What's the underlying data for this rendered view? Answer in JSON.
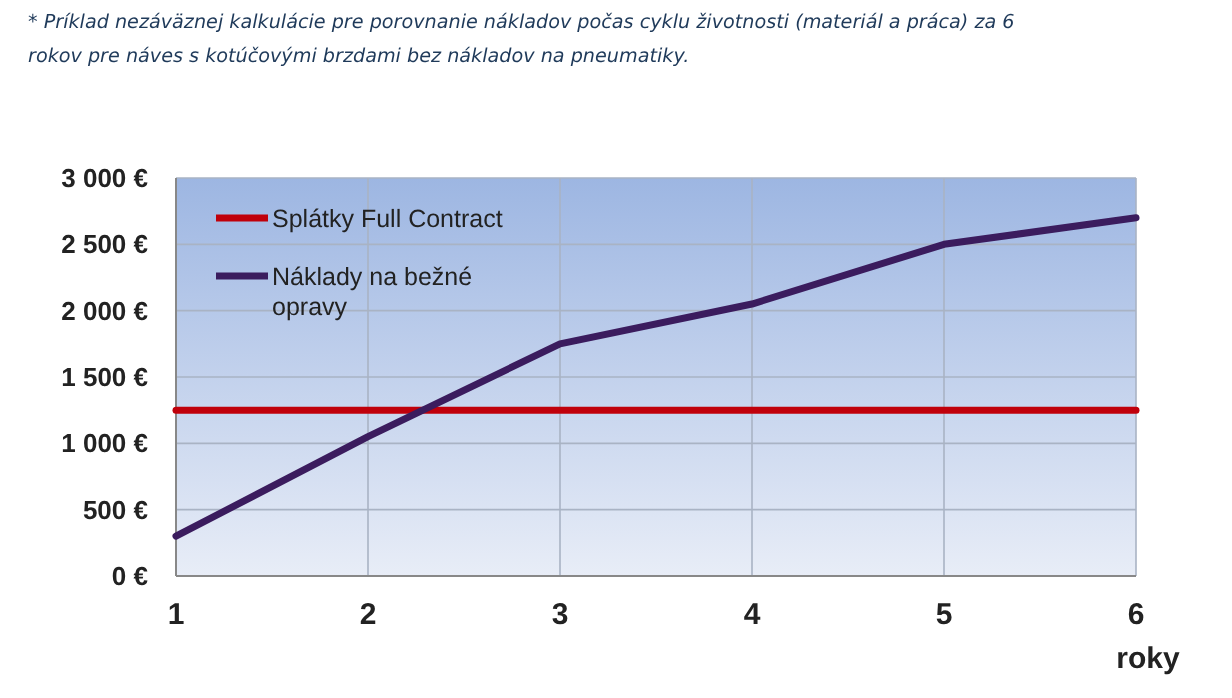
{
  "chart_data": {
    "type": "line",
    "annotations": [
      "* Príklad nezáväznej kalkulácie pre porovnanie nákladov počas cyklu životnosti (materiál a práca) za 6 rokov pre náves s kotúčovými brzdami bez nákladov na pneumatiky."
    ],
    "xlabel": "roky",
    "x": [
      1,
      2,
      3,
      4,
      5,
      6
    ],
    "xlim": [
      1,
      6
    ],
    "xticks": [
      1,
      2,
      3,
      4,
      5,
      6
    ],
    "ylim": [
      0,
      3000
    ],
    "yticks": [
      {
        "value": 0,
        "label": "0 €"
      },
      {
        "value": 500,
        "label": "500 €"
      },
      {
        "value": 1000,
        "label": "1 000 €"
      },
      {
        "value": 1500,
        "label": "1 500 €"
      },
      {
        "value": 2000,
        "label": "2 000 €"
      },
      {
        "value": 2500,
        "label": "2 500 €"
      },
      {
        "value": 3000,
        "label": "3 000 €"
      }
    ],
    "grid": true,
    "legend": "top left",
    "marker": "none",
    "line_style": "solid",
    "series": [
      {
        "name": "Splátky Full Contract",
        "color": "#c0000b",
        "values": [
          1250,
          1250,
          1250,
          1250,
          1250,
          1250
        ]
      },
      {
        "name": "Náklady na bežné opravy",
        "color": "#3b1c5e",
        "values": [
          300,
          1050,
          1750,
          2050,
          2500,
          2700
        ]
      }
    ]
  }
}
